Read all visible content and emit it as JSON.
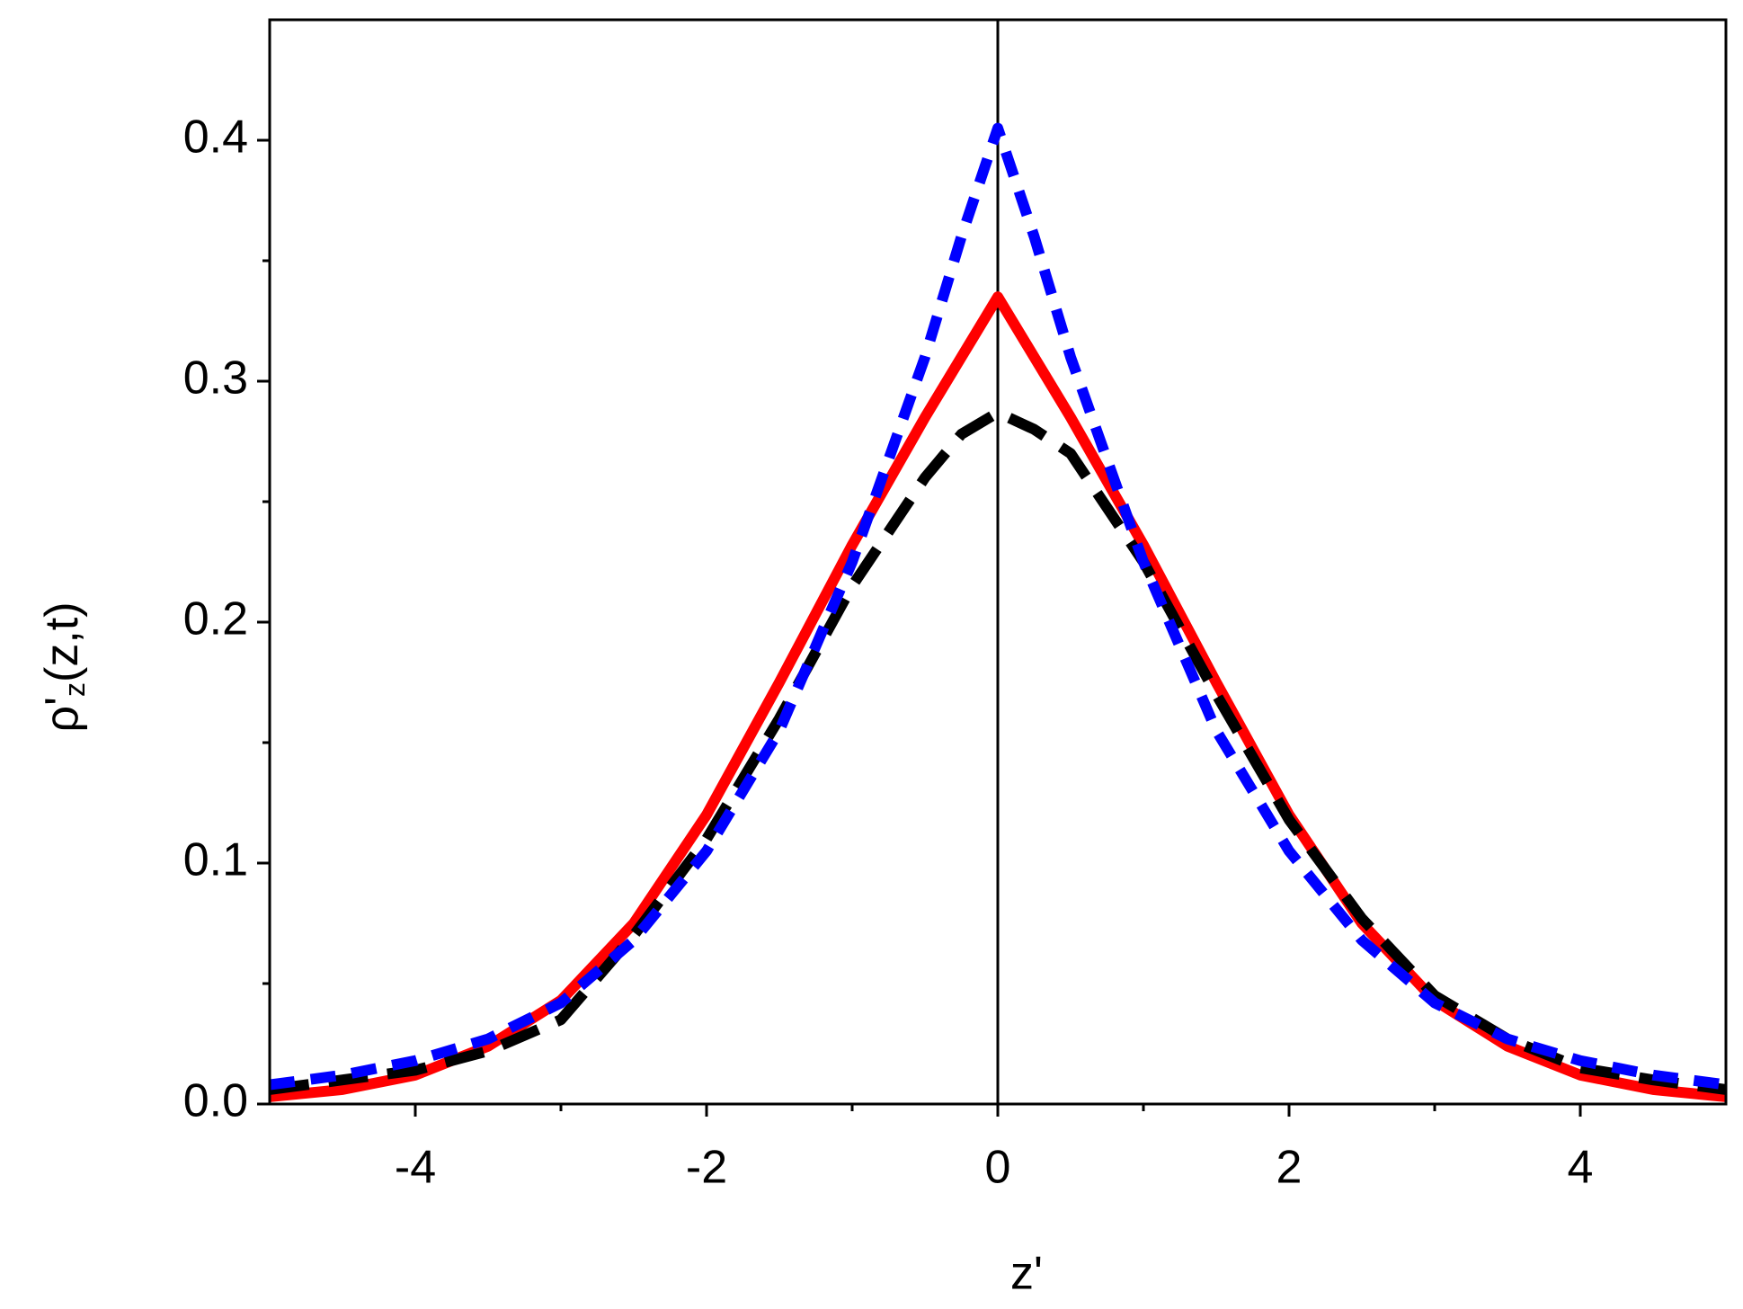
{
  "chart_data": {
    "type": "line",
    "xlabel": "z'",
    "ylabel": [
      "ρ'",
      "z",
      "(z,t)"
    ],
    "x": [
      -5,
      -4.5,
      -4,
      -3.5,
      -3,
      -2.5,
      -2,
      -1.5,
      -1,
      -0.5,
      -0.25,
      0,
      0.25,
      0.5,
      1,
      1.5,
      2,
      2.5,
      3,
      3.5,
      4,
      4.5,
      5
    ],
    "series": [
      {
        "color": "#ff0000",
        "dash": "solid",
        "values": [
          0.003,
          0.006,
          0.012,
          0.024,
          0.043,
          0.075,
          0.12,
          0.175,
          0.232,
          0.285,
          0.31,
          0.335,
          0.31,
          0.285,
          0.232,
          0.175,
          0.12,
          0.075,
          0.043,
          0.024,
          0.012,
          0.006,
          0.003
        ]
      },
      {
        "color": "#000000",
        "dash": "long",
        "values": [
          0.006,
          0.01,
          0.014,
          0.022,
          0.035,
          0.07,
          0.11,
          0.16,
          0.215,
          0.26,
          0.278,
          0.287,
          0.28,
          0.27,
          0.225,
          0.17,
          0.118,
          0.077,
          0.045,
          0.027,
          0.015,
          0.01,
          0.006
        ]
      },
      {
        "color": "#0000ff",
        "dash": "short",
        "values": [
          0.008,
          0.012,
          0.018,
          0.027,
          0.042,
          0.068,
          0.105,
          0.155,
          0.225,
          0.31,
          0.36,
          0.405,
          0.36,
          0.31,
          0.225,
          0.155,
          0.105,
          0.068,
          0.042,
          0.027,
          0.018,
          0.012,
          0.008
        ]
      }
    ],
    "xlim": [
      -5,
      5
    ],
    "xticks": [
      -4,
      -2,
      0,
      2,
      4
    ],
    "ylim": [
      0,
      0.45
    ],
    "yticks": [
      {
        "value": 0,
        "label": "0.0"
      },
      0.1,
      0.2,
      0.3,
      0.4
    ],
    "zero_line": true
  }
}
